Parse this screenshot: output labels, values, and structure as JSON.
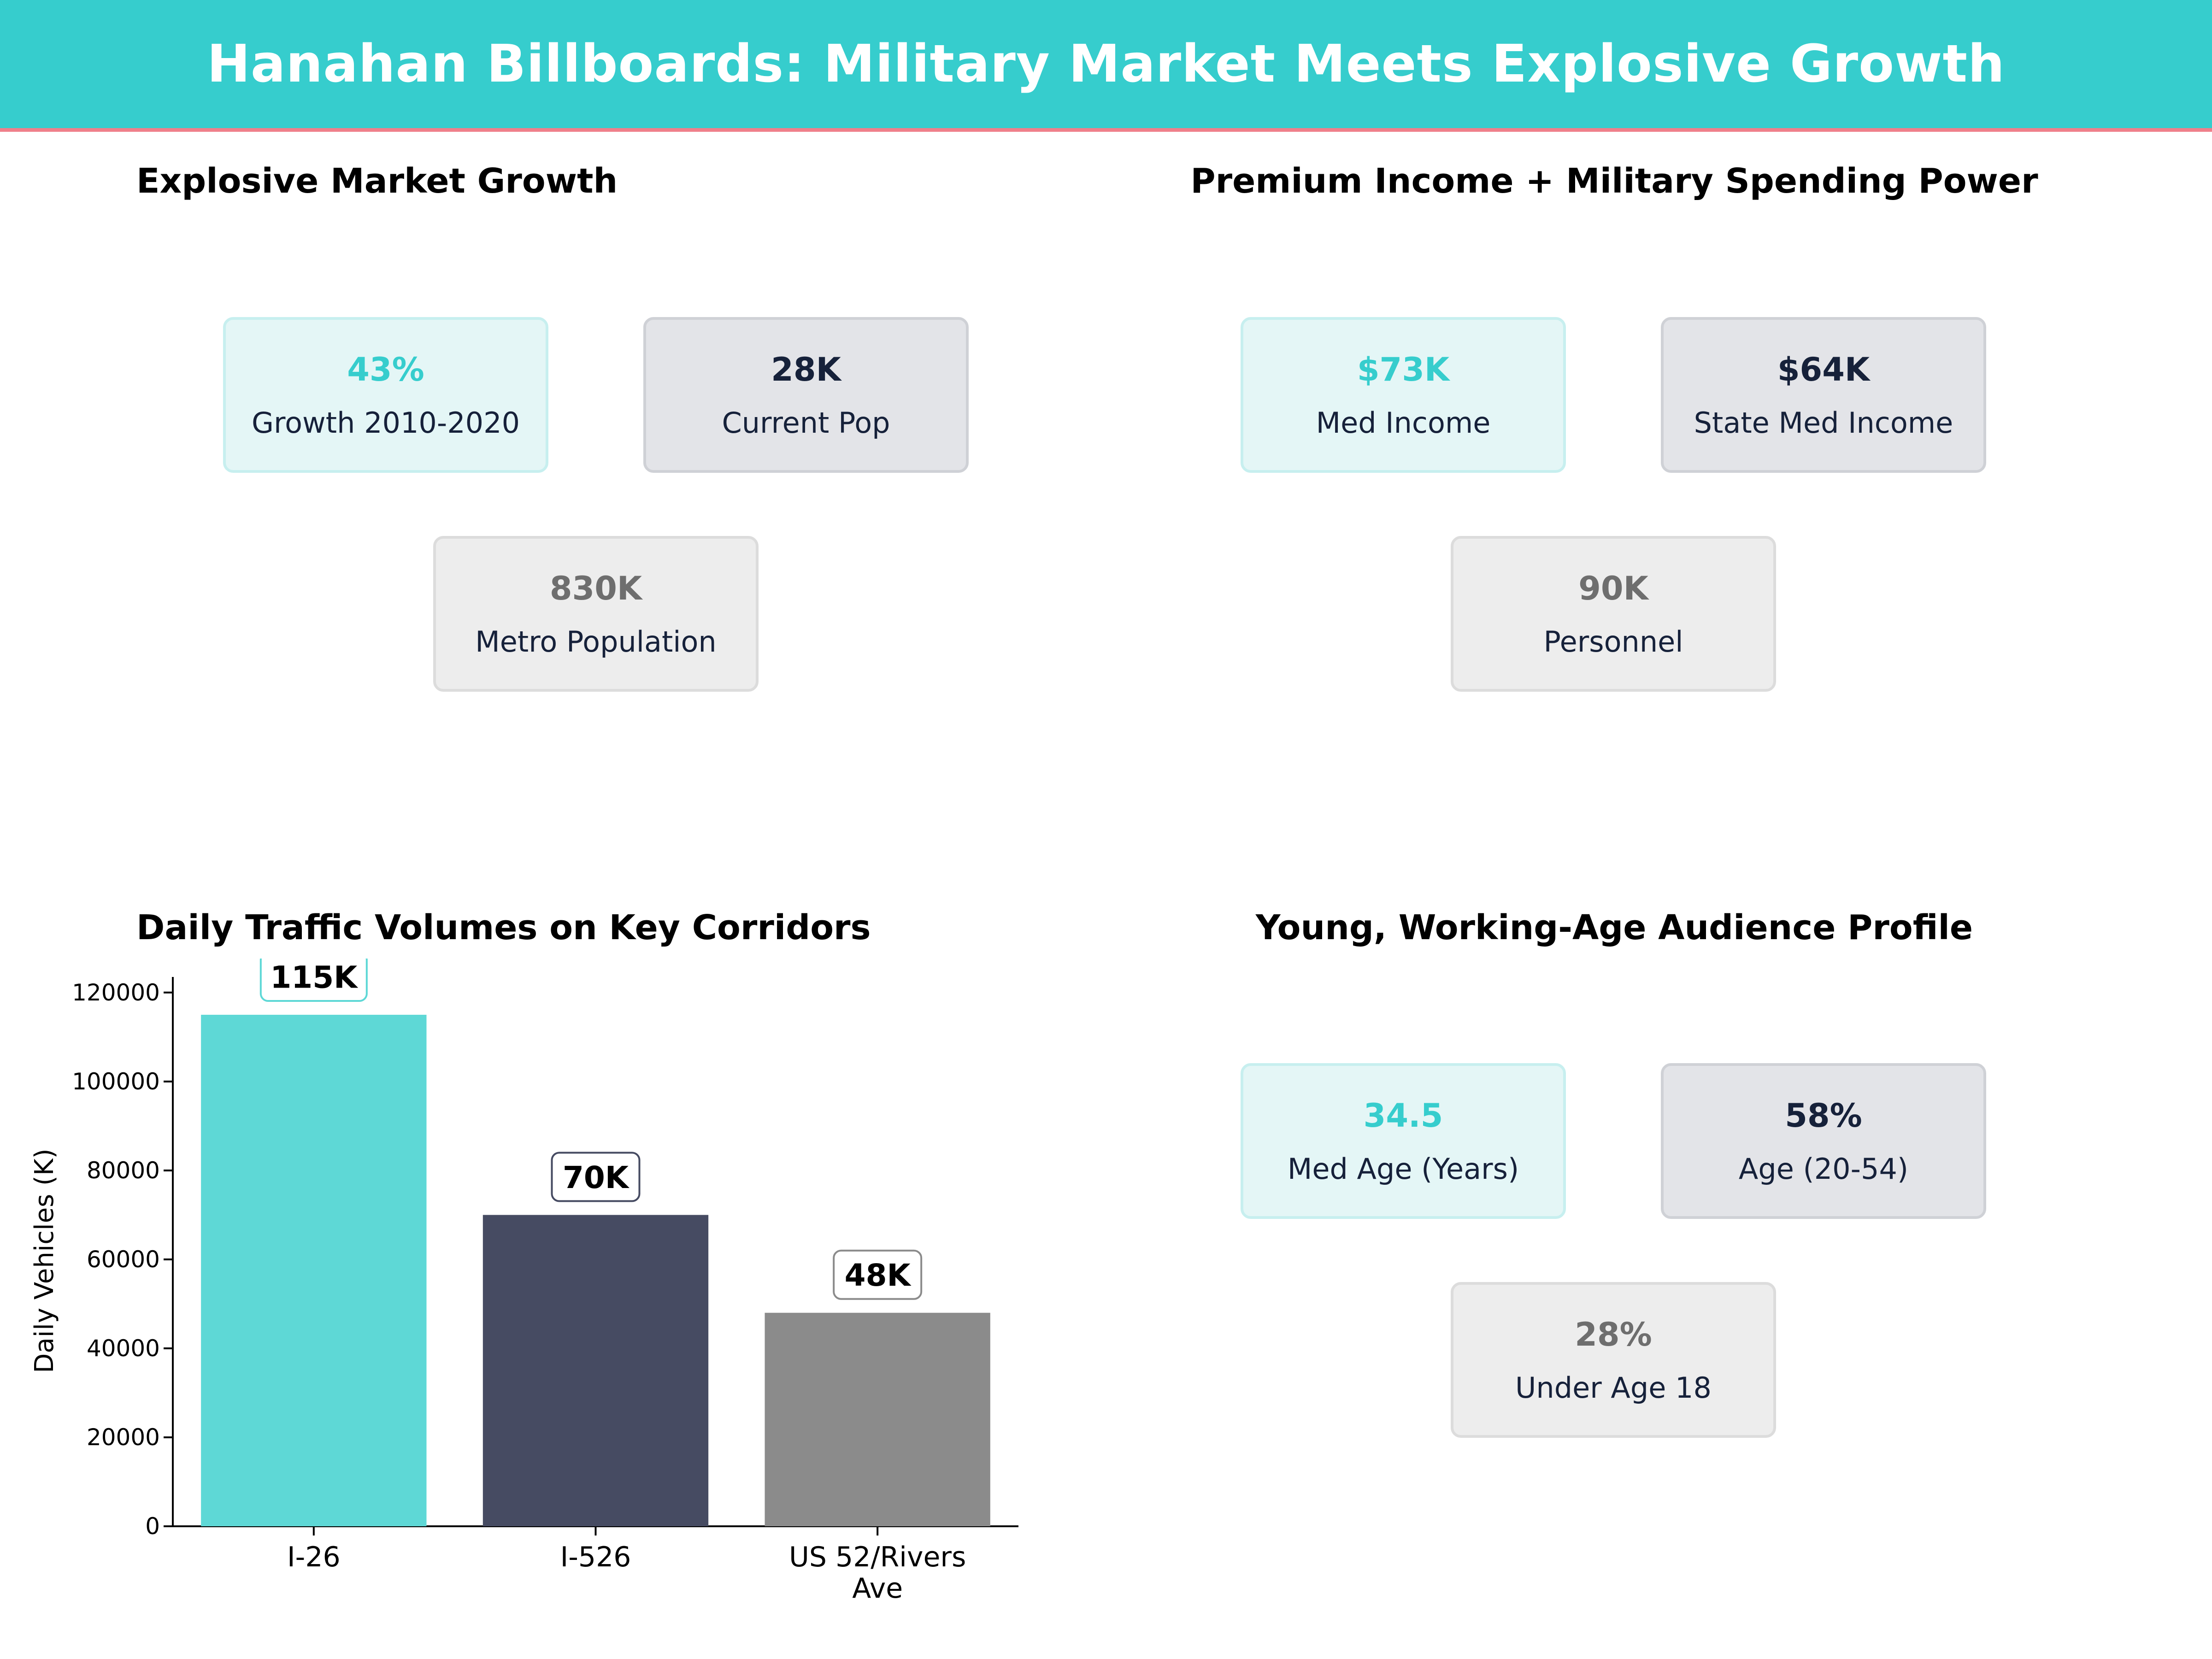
{
  "header": {
    "title": "Hanahan Billboards: Military Market Meets Explosive Growth"
  },
  "colors": {
    "teal": "#36cdcd",
    "navy": "#16213a",
    "gray": "#6e6e6e",
    "accent_line": "#ef7f8a"
  },
  "panels": {
    "growth": {
      "title": "Explosive Market Growth",
      "cards": [
        {
          "value": "43%",
          "label": "Growth 2010-2020"
        },
        {
          "value": "28K",
          "label": "Current Pop"
        },
        {
          "value": "830K",
          "label": "Metro Population"
        }
      ]
    },
    "income": {
      "title": "Premium Income + Military Spending Power",
      "cards": [
        {
          "value": "$73K",
          "label": "Med Income"
        },
        {
          "value": "$64K",
          "label": "State Med Income"
        },
        {
          "value": "90K",
          "label": "Personnel"
        }
      ]
    },
    "traffic": {
      "title": "Daily Traffic Volumes on Key Corridors"
    },
    "audience": {
      "title": "Young, Working-Age Audience Profile",
      "cards": [
        {
          "value": "34.5",
          "label": "Med Age (Years)"
        },
        {
          "value": "58%",
          "label": "Age (20-54)"
        },
        {
          "value": "28%",
          "label": "Under Age 18"
        }
      ]
    }
  },
  "chart_data": {
    "type": "bar",
    "title": "Daily Traffic Volumes on Key Corridors",
    "xlabel": "",
    "ylabel": "Daily Vehicles (K)",
    "categories": [
      "I-26",
      "I-526",
      "US 52/Rivers Ave"
    ],
    "values": [
      115000,
      70000,
      48000
    ],
    "data_labels": [
      "115K",
      "70K",
      "48K"
    ],
    "bar_colors": [
      "#5ed8d6",
      "#464b62",
      "#8b8b8b"
    ],
    "label_border_colors": [
      "#5ed8d6",
      "#464b62",
      "#8b8b8b"
    ],
    "ylim": [
      0,
      123500
    ],
    "yticks": [
      0,
      20000,
      40000,
      60000,
      80000,
      100000,
      120000
    ],
    "grid": false
  }
}
